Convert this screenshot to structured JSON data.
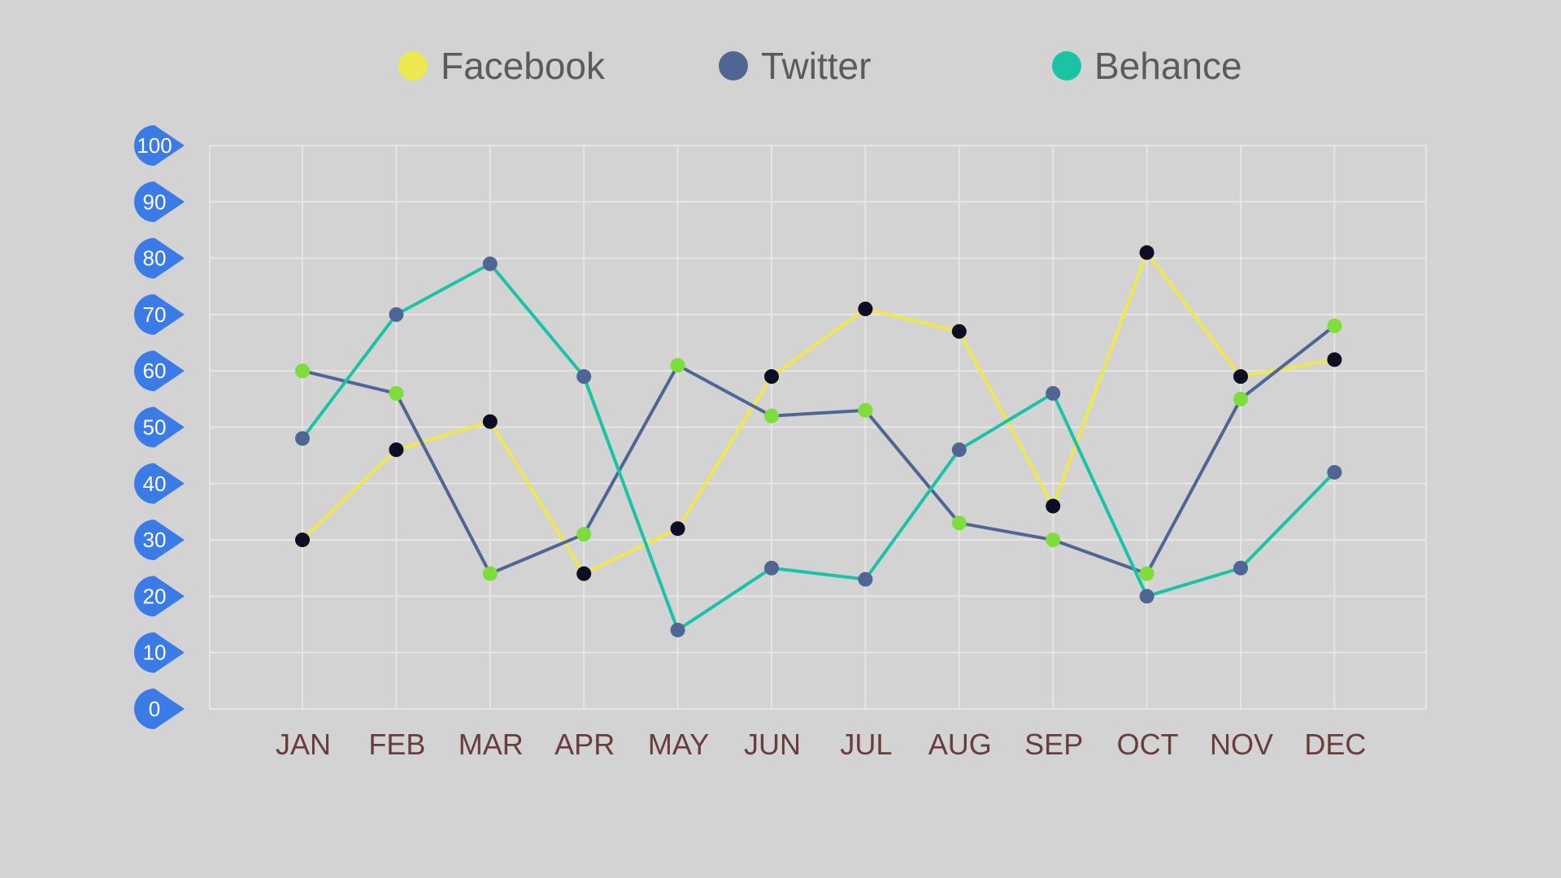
{
  "chart_data": {
    "type": "line",
    "categories": [
      "JAN",
      "FEB",
      "MAR",
      "APR",
      "MAY",
      "JUN",
      "JUL",
      "AUG",
      "SEP",
      "OCT",
      "NOV",
      "DEC"
    ],
    "series": [
      {
        "name": "Facebook",
        "color": "#ede84f",
        "values": [
          30,
          46,
          51,
          24,
          32,
          59,
          71,
          67,
          36,
          81,
          59,
          62
        ],
        "marker_colors": [
          "#0d0d24",
          "#0d0d24",
          "#0d0d24",
          "#0d0d24",
          "#0d0d24",
          "#0d0d24",
          "#0d0d24",
          "#0d0d24",
          "#0d0d24",
          "#0d0d24",
          "#0d0d24",
          "#0d0d24"
        ]
      },
      {
        "name": "Twitter",
        "color": "#4f6694",
        "values": [
          60,
          56,
          24,
          31,
          61,
          52,
          53,
          33,
          30,
          24,
          55,
          68
        ],
        "marker_colors": [
          "#7ddd3b",
          "#7ddd3b",
          "#7ddd3b",
          "#7ddd3b",
          "#7ddd3b",
          "#7ddd3b",
          "#7ddd3b",
          "#7ddd3b",
          "#7ddd3b",
          "#7ddd3b",
          "#7ddd3b",
          "#7ddd3b"
        ]
      },
      {
        "name": "Behance",
        "color": "#19c4a6",
        "values": [
          48,
          70,
          79,
          59,
          14,
          25,
          23,
          46,
          56,
          20,
          25,
          42
        ],
        "marker_colors": [
          "#4f6694",
          "#4f6694",
          "#4f6694",
          "#4f6694",
          "#4f6694",
          "#4f6694",
          "#4f6694",
          "#4f6694",
          "#4f6694",
          "#4f6694",
          "#4f6694",
          "#4f6694"
        ]
      }
    ],
    "y_ticks": [
      "0",
      "10",
      "20",
      "30",
      "40",
      "50",
      "60",
      "70",
      "80",
      "90",
      "100"
    ],
    "ylim": [
      0,
      100
    ],
    "grid": true,
    "legend_position": "top-center",
    "y_tick_badge_color": "#3b7be8"
  }
}
